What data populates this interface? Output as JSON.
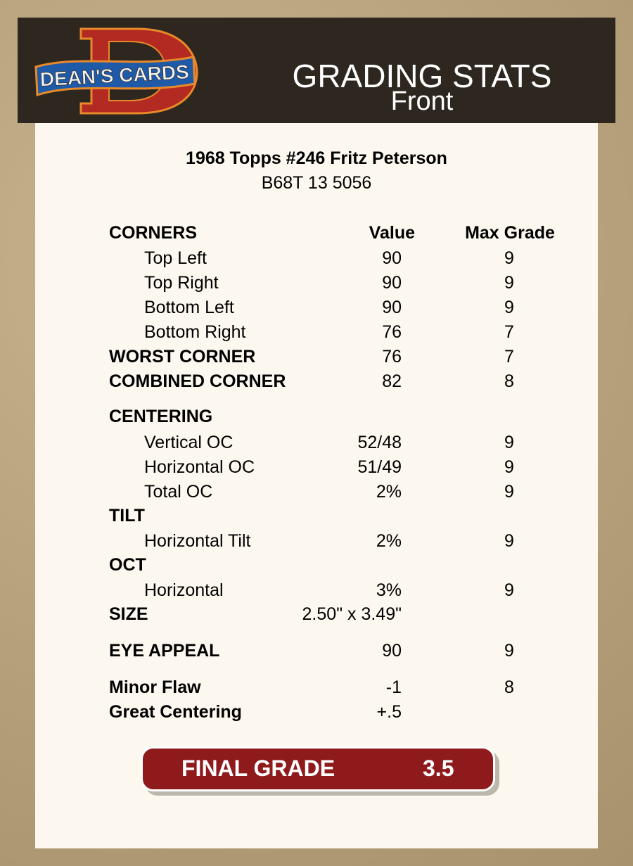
{
  "header": {
    "logo_text": "DEAN'S CARDS",
    "title": "GRADING STATS",
    "subtitle": "Front"
  },
  "card": {
    "name": "1968 Topps #246 Fritz Peterson",
    "id": "B68T 13 5056"
  },
  "columns": {
    "label": "CORNERS",
    "value": "Value",
    "max": "Max Grade"
  },
  "rows": [
    {
      "label": "Top Left",
      "value": "90",
      "max": "9",
      "style": "sub"
    },
    {
      "label": "Top Right",
      "value": "90",
      "max": "9",
      "style": "sub"
    },
    {
      "label": "Bottom Left",
      "value": "90",
      "max": "9",
      "style": "sub"
    },
    {
      "label": "Bottom Right",
      "value": "76",
      "max": "7",
      "style": "sub"
    },
    {
      "label": "WORST CORNER",
      "value": "76",
      "max": "7",
      "style": "bold"
    },
    {
      "label": "COMBINED CORNER",
      "value": "82",
      "max": "8",
      "style": "bold"
    },
    {
      "label": "CENTERING",
      "value": "",
      "max": "",
      "style": "bold"
    },
    {
      "label": "Vertical OC",
      "value": "52/48",
      "max": "9",
      "style": "sub"
    },
    {
      "label": "Horizontal OC",
      "value": "51/49",
      "max": "9",
      "style": "sub"
    },
    {
      "label": "Total OC",
      "value": "2%",
      "max": "9",
      "style": "sub"
    },
    {
      "label": "TILT",
      "value": "",
      "max": "",
      "style": "bold"
    },
    {
      "label": "Horizontal Tilt",
      "value": "2%",
      "max": "9",
      "style": "sub"
    },
    {
      "label": "OCT",
      "value": "",
      "max": "",
      "style": "bold"
    },
    {
      "label": "Horizontal",
      "value": "3%",
      "max": "9",
      "style": "sub"
    },
    {
      "label": "SIZE",
      "value": "2.50\" x 3.49\"",
      "max": "",
      "style": "bold"
    },
    {
      "label": "EYE APPEAL",
      "value": "90",
      "max": "9",
      "style": "bold"
    },
    {
      "label": "Minor Flaw",
      "value": "-1",
      "max": "8",
      "style": "bold"
    },
    {
      "label": "Great Centering",
      "value": "+.5",
      "max": "",
      "style": "bold"
    }
  ],
  "final": {
    "label": "FINAL GRADE",
    "value": "3.5"
  },
  "colors": {
    "header_bg": "#2e2720",
    "card_bg": "#fcf8ef",
    "final_bg": "#8f1a1c"
  }
}
